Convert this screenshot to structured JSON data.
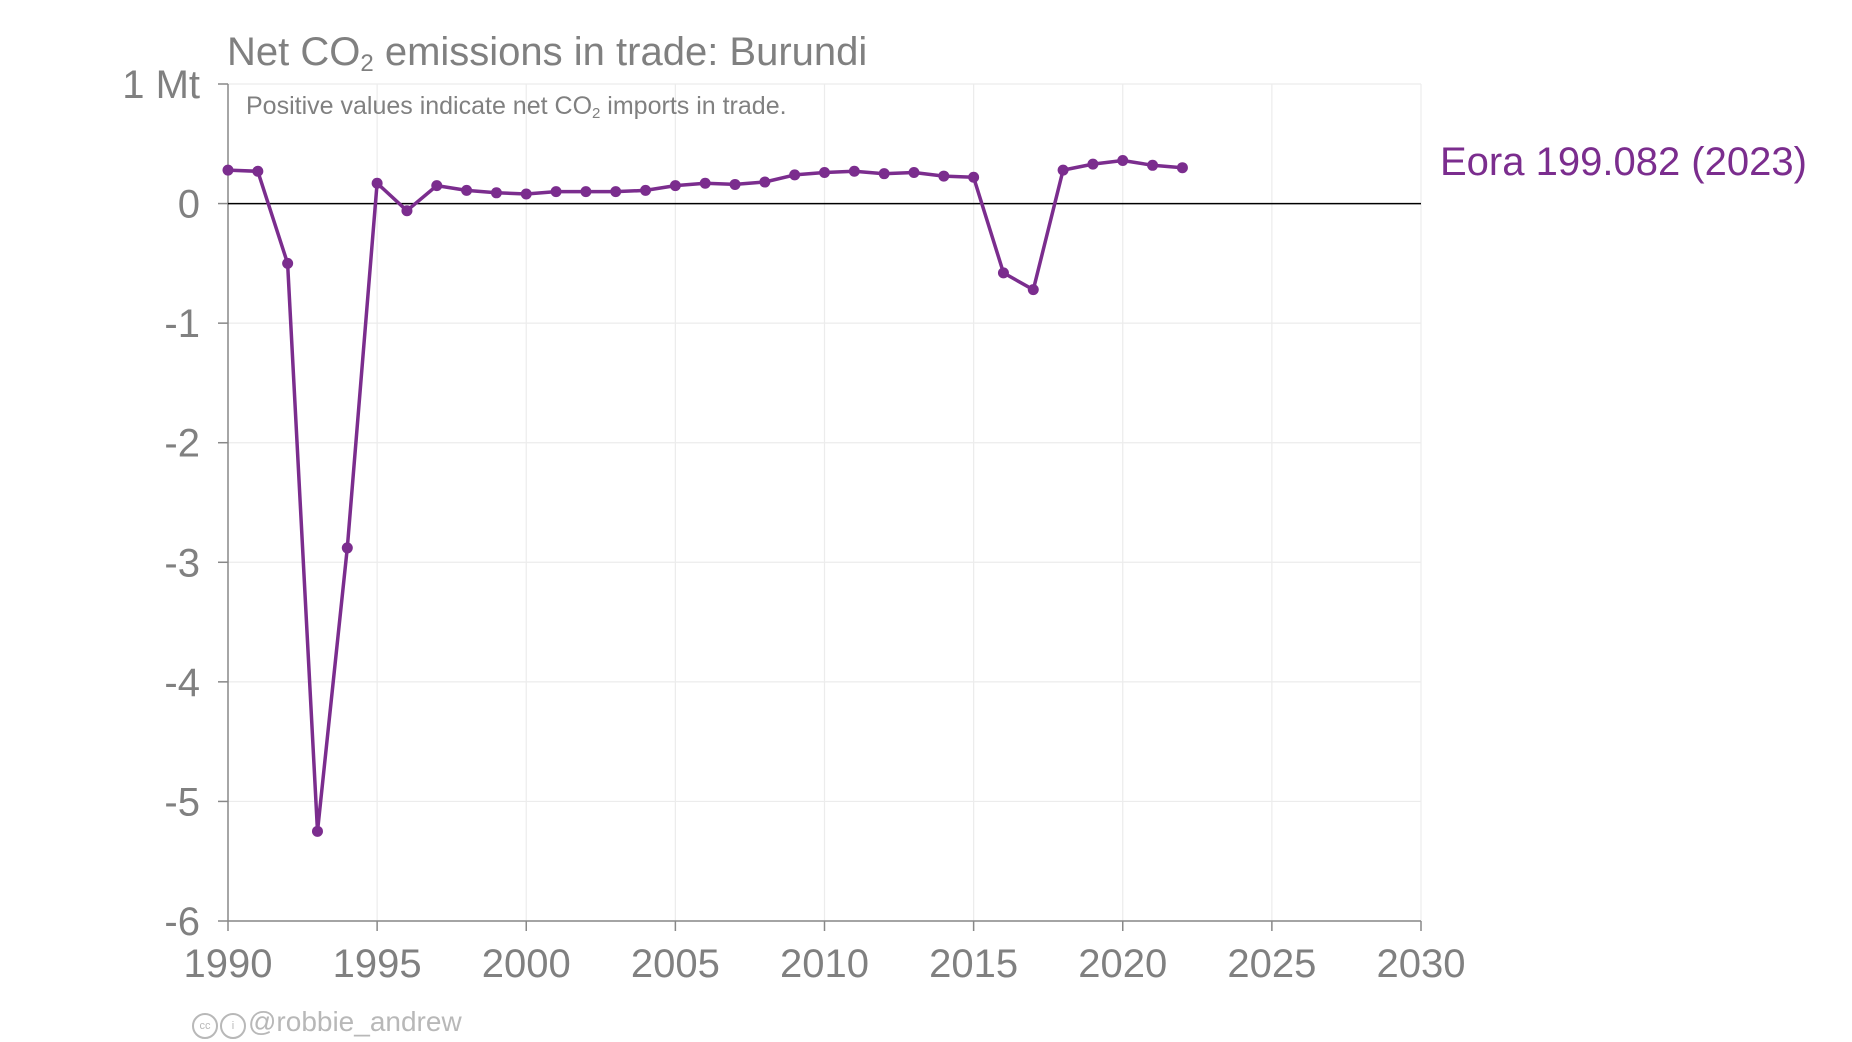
{
  "colors": {
    "series": "#7b2d8e",
    "axis_text": "#808080",
    "grid": "#ececec",
    "zero_line": "#000000",
    "credit": "#b8b8b8"
  },
  "header": {
    "title_pre": "Net CO",
    "title_sub": "2",
    "title_post": " emissions in trade: Burundi",
    "subtitle_pre": "Positive values indicate net CO",
    "subtitle_sub": "2",
    "subtitle_post": " imports in trade."
  },
  "credit": {
    "icons": [
      "cc-icon",
      "attribution-icon"
    ],
    "handle": "@robbie_andrew"
  },
  "chart_data": {
    "type": "line",
    "ylabel": "",
    "xlabel": "",
    "xlim": [
      1990,
      2030
    ],
    "ylim": [
      -6,
      1
    ],
    "x_ticks": [
      "1990",
      "1995",
      "2000",
      "2005",
      "2010",
      "2015",
      "2020",
      "2025",
      "2030"
    ],
    "y_ticks": [
      "1 Mt",
      "0",
      "-1",
      "-2",
      "-3",
      "-4",
      "-5",
      "-6"
    ],
    "grid": true,
    "series": [
      {
        "name": "Eora 199.082 (2023)",
        "x": [
          1990,
          1991,
          1992,
          1993,
          1994,
          1995,
          1996,
          1997,
          1998,
          1999,
          2000,
          2001,
          2002,
          2003,
          2004,
          2005,
          2006,
          2007,
          2008,
          2009,
          2010,
          2011,
          2012,
          2013,
          2014,
          2015,
          2016,
          2017,
          2018,
          2019,
          2020,
          2021,
          2022
        ],
        "y": [
          0.28,
          0.27,
          -0.5,
          -5.25,
          -2.88,
          0.17,
          -0.06,
          0.15,
          0.11,
          0.09,
          0.08,
          0.1,
          0.1,
          0.1,
          0.11,
          0.15,
          0.17,
          0.16,
          0.18,
          0.24,
          0.26,
          0.27,
          0.25,
          0.26,
          0.23,
          0.22,
          -0.58,
          -0.72,
          0.28,
          0.33,
          0.36,
          0.32,
          0.3
        ]
      }
    ]
  }
}
